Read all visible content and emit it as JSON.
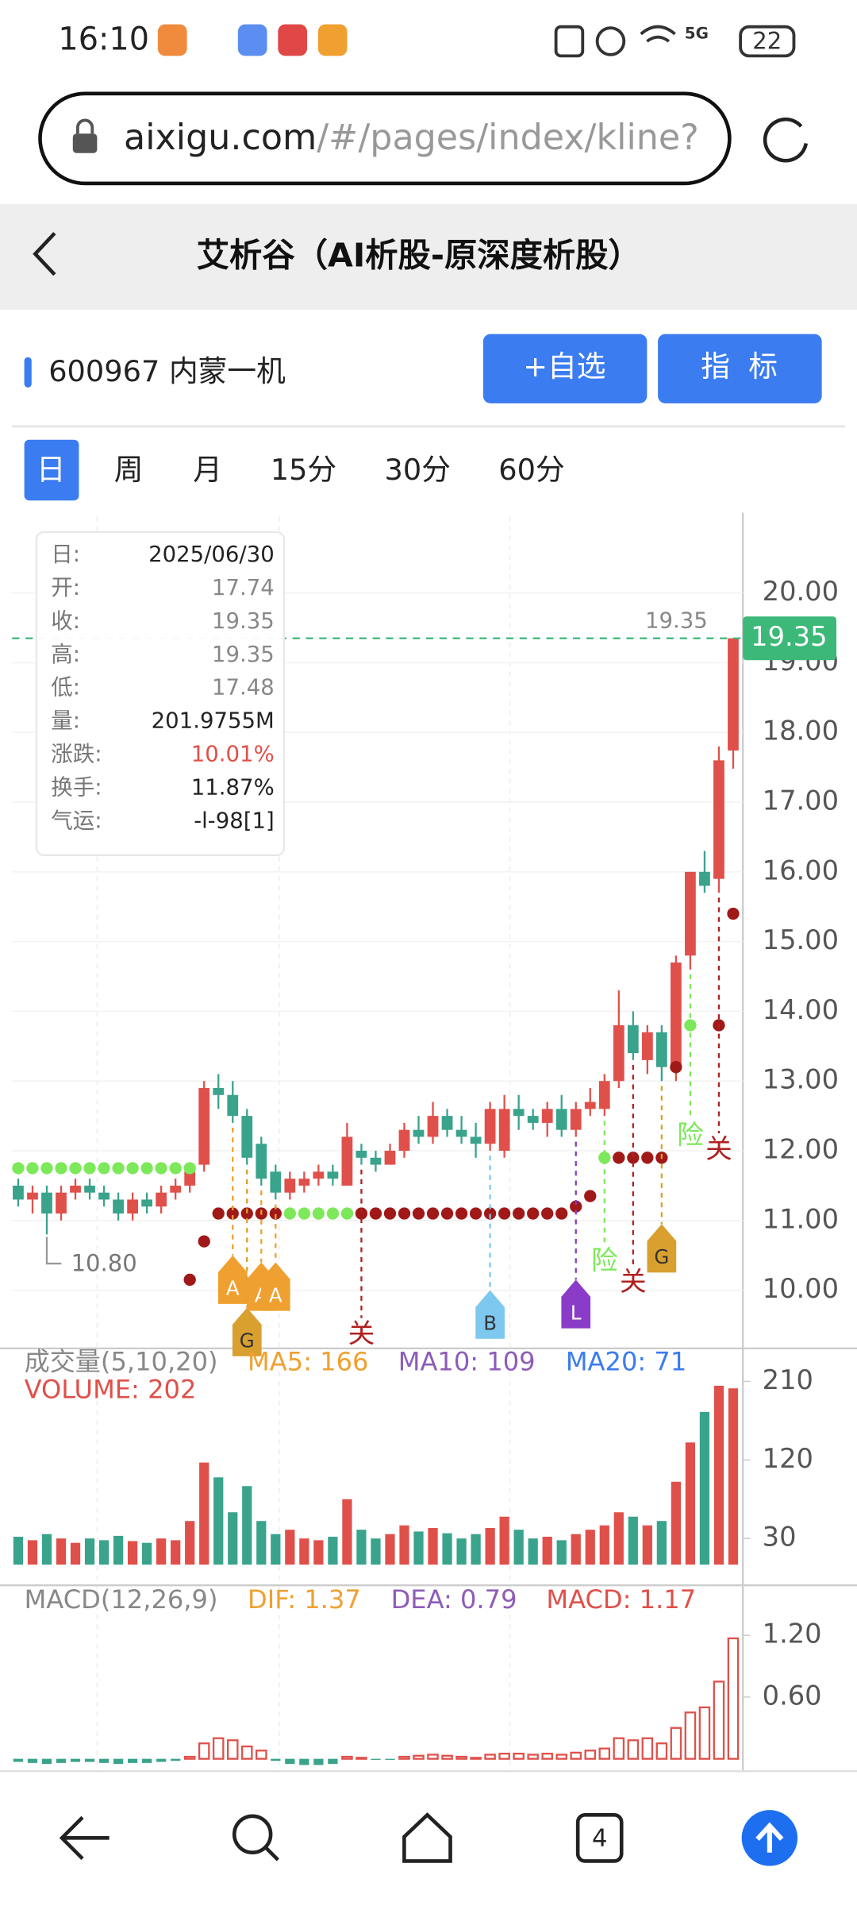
{
  "status_bar": {
    "time": "16:10",
    "network": "5G",
    "battery": "22"
  },
  "browser": {
    "url_host": "aixigu.com",
    "url_path": "/#/pages/index/kline?"
  },
  "header": {
    "title": "艾析谷（AI析股-原深度析股）"
  },
  "stock": {
    "code_name": "600967 内蒙一机",
    "buttons": [
      "+自选",
      "指  标"
    ]
  },
  "tabs": [
    "日",
    "周",
    "月",
    "15分",
    "30分",
    "60分"
  ],
  "info_box": {
    "rows": [
      [
        "日:",
        "2025/06/30"
      ],
      [
        "开:",
        "17.74"
      ],
      [
        "收:",
        "19.35"
      ],
      [
        "高:",
        "19.35"
      ],
      [
        "低:",
        "17.48"
      ],
      [
        "量:",
        "201.9755M"
      ],
      [
        "涨跌:",
        "10.01%"
      ],
      [
        "换手:",
        "11.87%"
      ],
      [
        "气运:",
        "-l-98[1]"
      ]
    ]
  },
  "chart_data": [
    {
      "type": "candlestick",
      "up_color": "#e0504a",
      "down_color": "#3aa38c",
      "open": [
        11.5,
        11.3,
        11.4,
        11.1,
        11.4,
        11.5,
        11.4,
        11.3,
        11.1,
        11.3,
        11.2,
        11.4,
        11.5,
        11.8,
        12.9,
        12.8,
        12.5,
        12.1,
        11.7,
        11.4,
        11.5,
        11.6,
        11.7,
        11.5,
        12.0,
        11.9,
        11.8,
        12.0,
        12.3,
        12.2,
        12.5,
        12.3,
        12.2,
        12.1,
        12.0,
        12.6,
        12.5,
        12.4,
        12.6,
        12.3,
        12.6,
        12.6,
        13.0,
        13.8,
        13.3,
        13.7,
        13.2,
        14.8,
        16.0,
        15.9,
        17.74
      ],
      "high": [
        11.6,
        11.5,
        11.5,
        11.5,
        11.6,
        11.6,
        11.5,
        11.4,
        11.4,
        11.4,
        11.5,
        11.6,
        11.8,
        13.0,
        13.1,
        13.0,
        12.6,
        12.2,
        11.8,
        11.7,
        11.7,
        11.8,
        11.8,
        12.4,
        12.1,
        12.0,
        12.1,
        12.4,
        12.5,
        12.7,
        12.6,
        12.5,
        12.4,
        12.7,
        12.8,
        12.8,
        12.6,
        12.7,
        12.8,
        12.7,
        12.9,
        13.1,
        14.3,
        14.0,
        13.8,
        13.8,
        14.8,
        16.0,
        16.3,
        17.8,
        19.35
      ],
      "low": [
        11.2,
        11.1,
        10.8,
        11.0,
        11.3,
        11.3,
        11.2,
        11.0,
        11.0,
        11.1,
        11.1,
        11.3,
        11.4,
        11.7,
        12.6,
        12.4,
        11.8,
        11.5,
        11.3,
        11.3,
        11.4,
        11.5,
        11.5,
        11.5,
        11.8,
        11.7,
        11.8,
        11.9,
        12.1,
        12.1,
        12.2,
        12.1,
        11.9,
        12.0,
        11.9,
        12.3,
        12.3,
        12.2,
        12.2,
        12.2,
        12.5,
        12.5,
        12.9,
        13.3,
        13.1,
        13.0,
        13.0,
        14.6,
        15.7,
        15.7,
        17.48
      ],
      "close": [
        11.3,
        11.4,
        11.1,
        11.4,
        11.5,
        11.4,
        11.3,
        11.1,
        11.3,
        11.2,
        11.4,
        11.5,
        11.7,
        12.9,
        12.8,
        12.5,
        11.9,
        11.6,
        11.4,
        11.6,
        11.6,
        11.7,
        11.6,
        12.2,
        11.9,
        11.8,
        12.0,
        12.3,
        12.2,
        12.5,
        12.3,
        12.2,
        12.1,
        12.6,
        12.6,
        12.5,
        12.4,
        12.6,
        12.3,
        12.6,
        12.7,
        13.0,
        13.8,
        13.4,
        13.7,
        13.2,
        14.7,
        16.0,
        15.8,
        17.6,
        19.35
      ],
      "ylim": [
        9.2,
        21.1
      ],
      "yticks": [
        {
          "value": 10,
          "label": "10.00"
        },
        {
          "value": 11,
          "label": "11.00"
        },
        {
          "value": 12,
          "label": "12.00"
        },
        {
          "value": 13,
          "label": "13.00"
        },
        {
          "value": 14,
          "label": "14.00"
        },
        {
          "value": 15,
          "label": "15.00"
        },
        {
          "value": 16,
          "label": "16.00"
        },
        {
          "value": 17,
          "label": "17.00"
        },
        {
          "value": 18,
          "label": "18.00"
        },
        {
          "value": 19,
          "label": "19.00"
        },
        {
          "value": 20,
          "label": "20.00"
        }
      ],
      "grid": true,
      "last_price": {
        "value": 19.35,
        "label": "19.35"
      },
      "low_mark": {
        "value": 10.8,
        "label": "10.80",
        "index": 2
      },
      "dot_series": [
        {
          "color": "#a01818",
          "values": [
            null,
            null,
            null,
            null,
            null,
            null,
            null,
            null,
            null,
            null,
            null,
            null,
            10.15,
            10.7,
            11.1,
            11.1,
            11.1,
            11.1,
            11.1,
            null,
            null,
            null,
            null,
            null,
            11.1,
            11.1,
            11.1,
            11.1,
            11.1,
            11.1,
            11.1,
            11.1,
            11.1,
            11.1,
            11.1,
            11.1,
            11.1,
            11.1,
            11.1,
            11.2,
            11.35,
            null,
            11.9,
            11.9,
            11.9,
            11.9,
            13.2,
            null,
            null,
            13.8,
            15.4
          ]
        },
        {
          "color": "#7ce85a",
          "values": [
            11.75,
            11.75,
            11.75,
            11.75,
            11.75,
            11.75,
            11.75,
            11.75,
            11.75,
            11.75,
            11.75,
            11.75,
            11.75,
            null,
            null,
            null,
            null,
            null,
            null,
            11.1,
            11.1,
            11.1,
            11.1,
            11.1,
            null,
            null,
            null,
            null,
            null,
            null,
            null,
            null,
            null,
            null,
            null,
            null,
            null,
            null,
            null,
            null,
            null,
            11.9,
            null,
            null,
            null,
            null,
            null,
            13.8,
            null,
            null,
            null
          ]
        }
      ],
      "markers": [
        {
          "label": "A",
          "index": 15,
          "price": 10.5,
          "color": "#f0a030"
        },
        {
          "label": "G",
          "index": 16,
          "price": 9.75,
          "color": "#d9a030"
        },
        {
          "label": "A",
          "index": 17,
          "price": 10.4,
          "color": "#f0a030"
        },
        {
          "label": "A",
          "index": 18,
          "price": 10.4,
          "color": "#f0a030"
        },
        {
          "label": "关",
          "index": 24,
          "price": 9.6,
          "color": "#b02020"
        },
        {
          "label": "B",
          "index": 33,
          "price": 10.0,
          "color": "#7ec8f0"
        },
        {
          "label": "L",
          "index": 39,
          "price": 10.15,
          "color": "#8a3cc8"
        },
        {
          "label": "险",
          "index": 41,
          "price": 10.65,
          "color": "#7ce85a"
        },
        {
          "label": "关",
          "index": 43,
          "price": 10.35,
          "color": "#b02020"
        },
        {
          "label": "G",
          "index": 45,
          "price": 10.95,
          "color": "#d9a030"
        },
        {
          "label": "险",
          "index": 47,
          "price": 12.45,
          "color": "#7ce85a"
        },
        {
          "label": "关",
          "index": 49,
          "price": 12.25,
          "color": "#b02020"
        }
      ]
    },
    {
      "type": "bar",
      "title": "成交量(5,10,20)",
      "subtitle": "VOLUME: 202",
      "indicators": [
        {
          "label": "MA5: 166",
          "color": "#f0a030"
        },
        {
          "label": "MA10: 109",
          "color": "#8e5cb8"
        },
        {
          "label": "MA20: 71",
          "color": "#3b7cf0"
        }
      ],
      "values": [
        32,
        28,
        35,
        30,
        25,
        30,
        28,
        33,
        27,
        25,
        30,
        28,
        50,
        117,
        100,
        60,
        90,
        50,
        35,
        40,
        30,
        28,
        32,
        75,
        40,
        30,
        35,
        45,
        38,
        42,
        36,
        30,
        35,
        42,
        55,
        40,
        30,
        32,
        28,
        35,
        40,
        45,
        60,
        55,
        45,
        50,
        95,
        140,
        175,
        205,
        202
      ],
      "ylim": [
        0,
        245
      ],
      "yticks": [
        30,
        120,
        210
      ]
    },
    {
      "type": "bar",
      "title": "MACD(12,26,9)",
      "indicators": [
        {
          "label": "DIF: 1.37",
          "color": "#f0a030"
        },
        {
          "label": "DEA: 0.79",
          "color": "#8e5cb8"
        },
        {
          "label": "MACD: 1.17",
          "color": "#e0504a"
        }
      ],
      "values": [
        -0.03,
        -0.04,
        -0.05,
        -0.04,
        -0.03,
        -0.03,
        -0.04,
        -0.05,
        -0.04,
        -0.04,
        -0.03,
        -0.02,
        0.02,
        0.15,
        0.2,
        0.18,
        0.12,
        0.08,
        -0.02,
        -0.05,
        -0.06,
        -0.06,
        -0.05,
        0.02,
        0.01,
        -0.01,
        -0.01,
        0.02,
        0.03,
        0.04,
        0.03,
        0.02,
        0.01,
        0.04,
        0.05,
        0.05,
        0.04,
        0.05,
        0.04,
        0.06,
        0.08,
        0.1,
        0.2,
        0.18,
        0.2,
        0.15,
        0.3,
        0.45,
        0.5,
        0.75,
        1.17
      ],
      "ylim": [
        -0.12,
        1.65
      ],
      "yticks": [
        {
          "value": 0.6,
          "label": "0.60"
        },
        {
          "value": 1.2,
          "label": "1.20"
        }
      ]
    }
  ],
  "bottom_nav": {
    "tab_count": "4"
  }
}
